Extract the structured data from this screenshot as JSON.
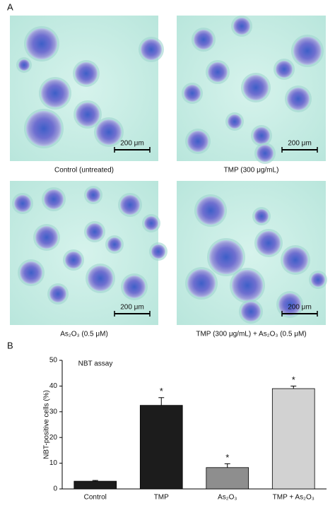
{
  "panel_a": {
    "label": "A",
    "images": [
      {
        "caption": "Control (untreated)",
        "scale_bar": "200 μm"
      },
      {
        "caption": "TMP (300 μg/mL)",
        "scale_bar": "200 μm"
      },
      {
        "caption": "As₂O₃ (0.5 μM)",
        "scale_bar": "200 μm"
      },
      {
        "caption": "TMP (300 μg/mL) + As₂O₃ (0.5 μM)",
        "scale_bar": "200 μm"
      }
    ]
  },
  "panel_b": {
    "label": "B"
  },
  "chart_data": {
    "type": "bar",
    "title": "NBT assay",
    "y_label": "NBT-positive cells (%)",
    "categories": [
      "Control",
      "TMP",
      "As₂O₃",
      "TMP + As₂O₃"
    ],
    "values": [
      3,
      32.5,
      8.3,
      39
    ],
    "errors": [
      0.3,
      3,
      1.5,
      1
    ],
    "colors": [
      "#1c1c1c",
      "#1c1c1c",
      "#8e8e8e",
      "#d2d2d2"
    ],
    "annotations": [
      null,
      "*",
      "*",
      "*"
    ],
    "ylim": [
      0,
      50
    ],
    "yticks": [
      0,
      10,
      20,
      30,
      40,
      50
    ]
  }
}
